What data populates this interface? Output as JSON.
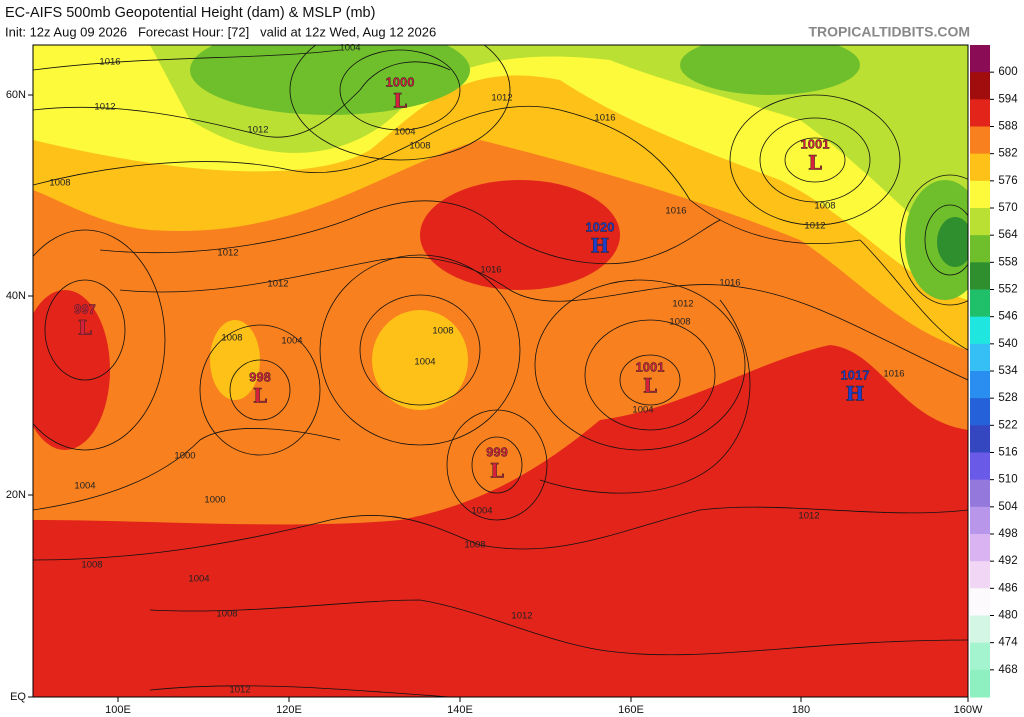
{
  "header": {
    "title": "EC-AIFS 500mb Geopotential Height (dam) & MSLP (mb)",
    "subtitle": "Init: 12z Aug 09 2026   Forecast Hour: [72]   valid at 12z Wed, Aug 12 2026",
    "credit": "TROPICALTIDBITS.COM"
  },
  "colorbar": {
    "labels": [
      600,
      594,
      588,
      582,
      576,
      570,
      564,
      558,
      552,
      546,
      540,
      534,
      528,
      522,
      516,
      510,
      504,
      498,
      492,
      486,
      480,
      474,
      468
    ],
    "colors": [
      "#8a0c55",
      "#a10d0d",
      "#e2241b",
      "#f8801f",
      "#fdc117",
      "#fcfa3a",
      "#b9e033",
      "#6fbf2d",
      "#2f8f2f",
      "#20c06a",
      "#20e6e0",
      "#35bff5",
      "#2a8ef0",
      "#2561d8",
      "#3447c0",
      "#6a5ae8",
      "#9478dc",
      "#b896ea",
      "#dab4f2",
      "#f1d6f6",
      "#fdfafd",
      "#d4f6e4",
      "#a4f5cf",
      "#8ef0c0"
    ]
  },
  "axes": {
    "latitudes": [
      "60N",
      "40N",
      "20N",
      "EQ"
    ],
    "longitudes": [
      "100E",
      "120E",
      "140E",
      "160E",
      "180",
      "160W"
    ]
  },
  "centers": [
    {
      "letter": "L",
      "pressure": 1000
    },
    {
      "letter": "H",
      "pressure": 1020
    },
    {
      "letter": "L",
      "pressure": 1001
    },
    {
      "letter": "L",
      "pressure": 997
    },
    {
      "letter": "L",
      "pressure": 998
    },
    {
      "letter": "L",
      "pressure": 1001
    },
    {
      "letter": "H",
      "pressure": 1017
    },
    {
      "letter": "L",
      "pressure": 999
    }
  ],
  "isobar_labels": [
    1016,
    1012,
    1012,
    1008,
    1012,
    1012,
    1008,
    1004,
    1016,
    1012,
    1016,
    1016,
    1008,
    1012,
    1016,
    1012,
    1008,
    1004,
    1016,
    1004,
    1008,
    1012,
    1012,
    1008,
    1000,
    1004,
    1000,
    1008,
    1004,
    1012,
    1004,
    1008,
    1004,
    1008,
    1004
  ]
}
